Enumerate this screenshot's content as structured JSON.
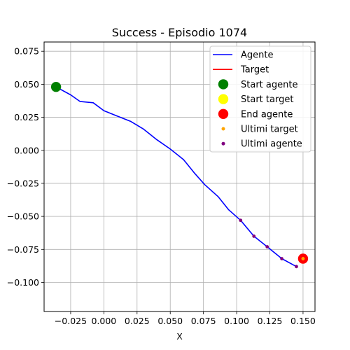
{
  "chart_data": {
    "type": "line",
    "title": "Success - Episodio 1074",
    "xlabel": "X",
    "ylabel": "",
    "xlim": [
      -0.045,
      0.159
    ],
    "ylim": [
      -0.122,
      0.082
    ],
    "grid": true,
    "legend_placement": "top-right",
    "xticks": [
      -0.025,
      0.0,
      0.025,
      0.05,
      0.075,
      0.1,
      0.125,
      0.15
    ],
    "xtick_labels": [
      "−0.025",
      "0.000",
      "0.025",
      "0.050",
      "0.075",
      "0.100",
      "0.125",
      "0.150"
    ],
    "yticks": [
      0.075,
      0.05,
      0.025,
      0.0,
      -0.025,
      -0.05,
      -0.075,
      -0.1
    ],
    "ytick_labels": [
      "0.075",
      "0.050",
      "0.025",
      "0.000",
      "−0.025",
      "−0.050",
      "−0.075",
      "−0.100"
    ],
    "colors": {
      "agente": "#0000ff",
      "target": "#ff0000",
      "start_agente": "#008000",
      "start_target": "#ffff00",
      "end_agente": "#ff0000",
      "ultimi_target": "#ffa500",
      "ultimi_agente": "#800080",
      "grid": "#b0b0b0"
    },
    "series": [
      {
        "name": "Agente",
        "kind": "line",
        "x": [
          -0.036,
          -0.025,
          -0.018,
          -0.008,
          0.0,
          0.01,
          0.02,
          0.03,
          0.04,
          0.05,
          0.06,
          0.068,
          0.076,
          0.086,
          0.094,
          0.103,
          0.113,
          0.123,
          0.134,
          0.145
        ],
        "y": [
          0.048,
          0.042,
          0.037,
          0.036,
          0.03,
          0.026,
          0.022,
          0.016,
          0.008,
          0.001,
          -0.007,
          -0.017,
          -0.026,
          -0.035,
          -0.045,
          -0.053,
          -0.065,
          -0.073,
          -0.082,
          -0.088
        ]
      },
      {
        "name": "Target",
        "kind": "line",
        "x": [
          0.15
        ],
        "y": [
          -0.082
        ]
      },
      {
        "name": "Start agente",
        "kind": "point",
        "x": [
          -0.036
        ],
        "y": [
          0.048
        ]
      },
      {
        "name": "Start target",
        "kind": "point",
        "x": [
          0.15
        ],
        "y": [
          -0.082
        ]
      },
      {
        "name": "End agente",
        "kind": "point",
        "x": [
          0.15
        ],
        "y": [
          -0.082
        ]
      },
      {
        "name": "Ultimi target",
        "kind": "point",
        "x": [
          0.15
        ],
        "y": [
          -0.082
        ]
      },
      {
        "name": "Ultimi agente",
        "kind": "point",
        "x": [
          0.103,
          0.113,
          0.123,
          0.134,
          0.145
        ],
        "y": [
          -0.053,
          -0.065,
          -0.073,
          -0.082,
          -0.088
        ]
      }
    ],
    "legend": [
      "Agente",
      "Target",
      "Start agente",
      "Start target",
      "End agente",
      "Ultimi target",
      "Ultimi agente"
    ]
  }
}
